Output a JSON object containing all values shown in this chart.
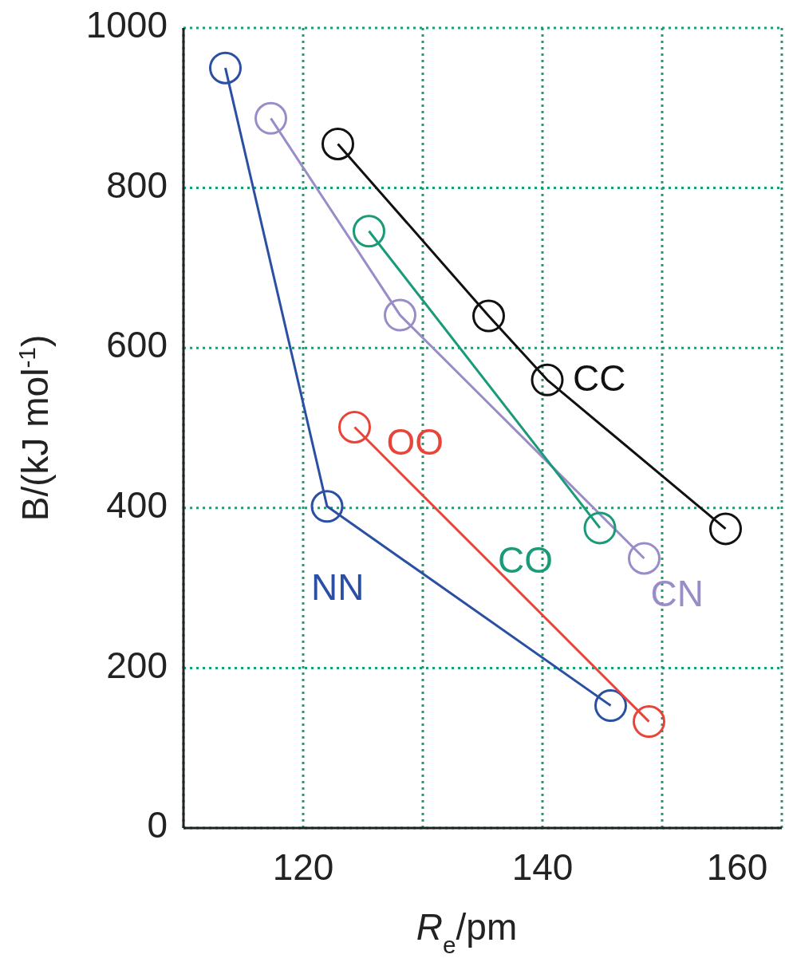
{
  "chart_data": {
    "type": "line",
    "xlabel": "R$_{e}$/pm",
    "ylabel": "B/(kJ mol$^{-1}$)",
    "xlim": [
      110,
      160
    ],
    "xticks": [
      {
        "value": 110,
        "label": null
      },
      120,
      {
        "value": 130,
        "label": null
      },
      140,
      {
        "value": 150,
        "label": null
      },
      160
    ],
    "ylim": [
      0,
      1000
    ],
    "yticks": [
      0,
      200,
      400,
      600,
      800,
      1000
    ],
    "grid": true,
    "marker": "circle",
    "line_style": "solid",
    "series": [
      {
        "name": "NN",
        "color": "#2a4fa3",
        "x": [
          113.5,
          122,
          145.7
        ],
        "values": [
          950,
          402,
          153
        ]
      },
      {
        "name": "CN",
        "color": "#9a8cc8",
        "x": [
          117.3,
          128.1,
          148.5
        ],
        "values": [
          887,
          641,
          337
        ]
      },
      {
        "name": "CC",
        "color": "#111111",
        "x": [
          122.9,
          135.5,
          140.4,
          155.3
        ],
        "values": [
          855,
          640,
          560,
          374
        ]
      },
      {
        "name": "CO",
        "color": "#1a9a78",
        "x": [
          125.5,
          144.8
        ],
        "values": [
          746,
          375
        ]
      },
      {
        "name": "OO",
        "color": "#e8443a",
        "x": [
          124.3,
          148.9
        ],
        "values": [
          501,
          133
        ]
      }
    ]
  }
}
